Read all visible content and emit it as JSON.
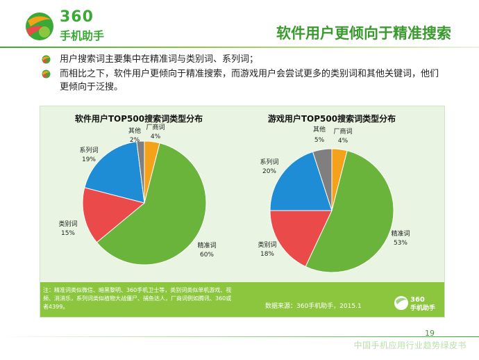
{
  "header": {
    "logo_number": "360",
    "logo_name": "手机助手",
    "title": "软件用户更倾向于精准搜索"
  },
  "bullets": [
    "用户搜索词主要集中在精准词与类别词、系列词；",
    "而相比之下，软件用户更倾向于精准搜索，而游戏用户会尝试更多的类别词和其他关键词，他们更倾向于泛搜。"
  ],
  "chart_data": [
    {
      "type": "pie",
      "title": "软件用户TOP500搜索词类型分布",
      "slices": [
        {
          "label": "厂商词",
          "value": 4,
          "display": "4%",
          "color": "#f5a21b"
        },
        {
          "label": "精准词",
          "value": 60,
          "display": "60%",
          "color": "#6ab43c"
        },
        {
          "label": "类别词",
          "value": 15,
          "display": "15%",
          "color": "#ea4a4a"
        },
        {
          "label": "系列词",
          "value": 19,
          "display": "19%",
          "color": "#1f8dd6"
        },
        {
          "label": "其他",
          "value": 2,
          "display": "2%",
          "color": "#7f7f7f"
        }
      ]
    },
    {
      "type": "pie",
      "title": "游戏用户TOP500搜索词类型分布",
      "slices": [
        {
          "label": "厂商词",
          "value": 4,
          "display": "4%",
          "color": "#f5a21b"
        },
        {
          "label": "精准词",
          "value": 53,
          "display": "53%",
          "color": "#6ab43c"
        },
        {
          "label": "类别词",
          "value": 18,
          "display": "18%",
          "color": "#ea4a4a"
        },
        {
          "label": "系列词",
          "value": 20,
          "display": "20%",
          "color": "#1f8dd6"
        },
        {
          "label": "其他",
          "value": 5,
          "display": "5%",
          "color": "#7f7f7f"
        }
      ]
    }
  ],
  "note": "注：精准词类似微信、暗黑黎明、360手机卫士等，类别词类似单机游戏、视频、消消乐，系列词类似植物大战僵尸、捕鱼达人，厂商词例如腾讯、360或者4399。",
  "source": "数据来源：360手机助手，2015.1",
  "mini_logo": "手机助手",
  "page_number": "19",
  "footer": "中国手机应用行业趋势绿皮书"
}
